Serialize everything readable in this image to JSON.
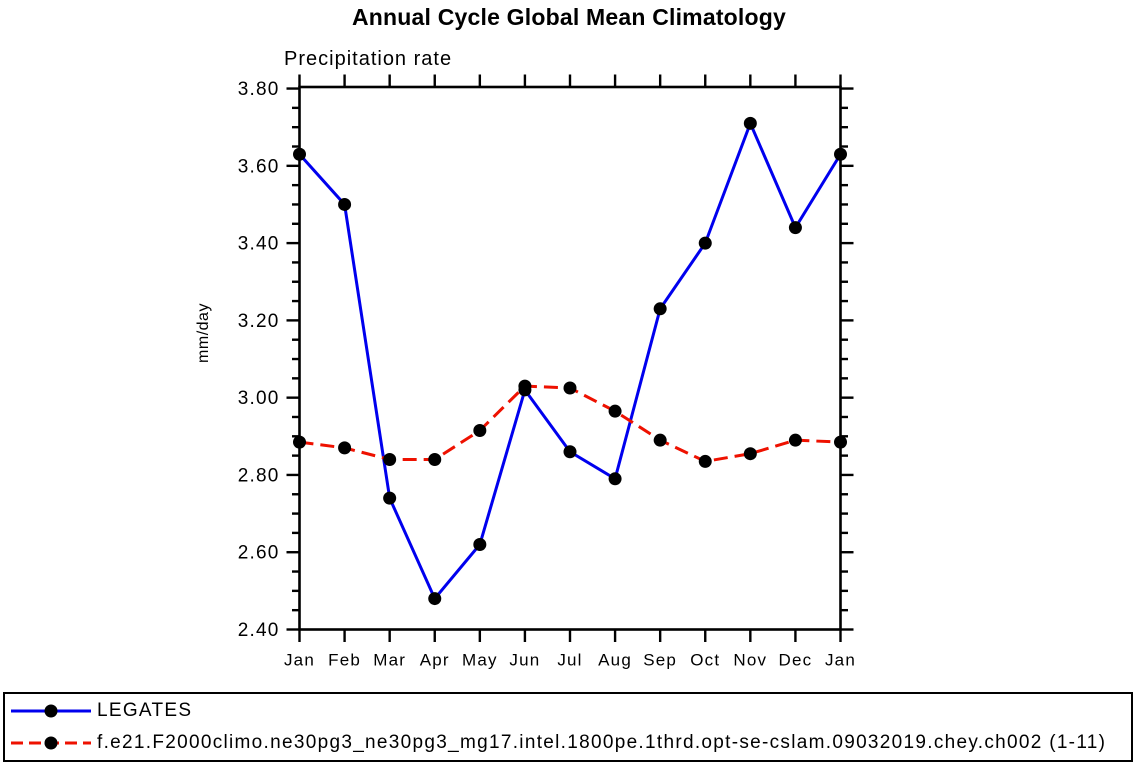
{
  "chart_data": {
    "type": "line",
    "title": "Annual Cycle Global Mean Climatology",
    "subtitle": "Precipitation rate",
    "ylabel": "mm/day",
    "xlabel": "",
    "categories": [
      "Jan",
      "Feb",
      "Mar",
      "Apr",
      "May",
      "Jun",
      "Jul",
      "Aug",
      "Sep",
      "Oct",
      "Nov",
      "Dec",
      "Jan"
    ],
    "ylim": [
      2.4,
      3.804
    ],
    "ytick_step": 0.2,
    "ytick_minor_step": 0.05,
    "ytick_labels": [
      "2.40",
      "2.60",
      "2.80",
      "3.00",
      "3.20",
      "3.40",
      "3.60",
      "3.80"
    ],
    "grid": false,
    "legend_position": "bottom-box",
    "marker_color": "#000000",
    "axis_color": "#000000",
    "series": [
      {
        "id": "legates",
        "name": "LEGATES",
        "color": "#0000ee",
        "style": "solid",
        "marker": "circle",
        "values": [
          3.63,
          3.5,
          2.74,
          2.48,
          2.62,
          3.02,
          2.86,
          2.79,
          3.23,
          3.4,
          3.71,
          3.44,
          3.63
        ]
      },
      {
        "id": "model-run",
        "name": "f.e21.F2000climo.ne30pg3_ne30pg3_mg17.intel.1800pe.1thrd.opt-se-cslam.09032019.chey.ch002 (1-11)",
        "color": "#ee1100",
        "style": "dashed",
        "marker": "circle",
        "values": [
          2.885,
          2.87,
          2.84,
          2.84,
          2.915,
          3.03,
          3.025,
          2.965,
          2.89,
          2.835,
          2.855,
          2.89,
          2.885
        ]
      }
    ]
  }
}
